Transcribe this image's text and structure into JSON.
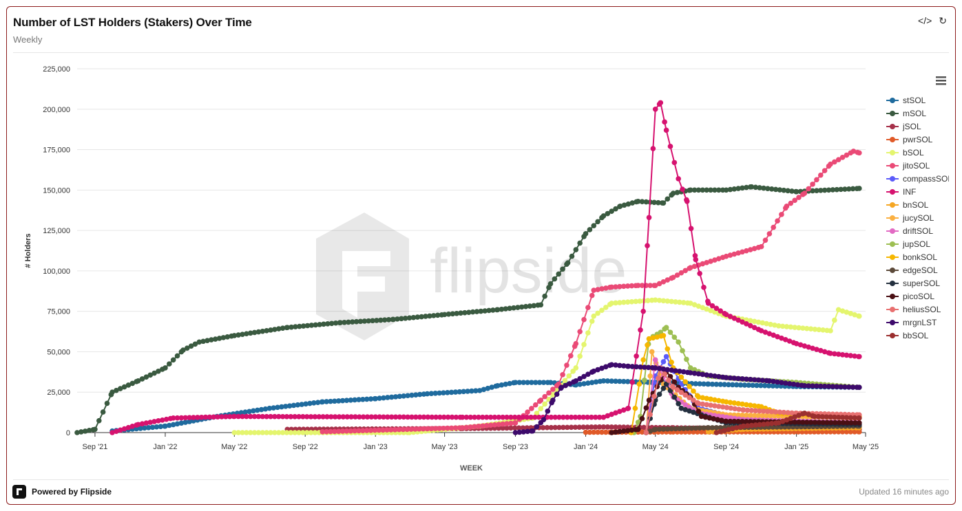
{
  "header": {
    "title": "Number of LST Holders (Stakers) Over Time",
    "subtitle": "Weekly",
    "embed_icon": "code-icon",
    "refresh_icon": "refresh-icon"
  },
  "footer": {
    "powered_by": "Powered by Flipside",
    "updated": "Updated 16 minutes ago"
  },
  "watermark": "flipside",
  "menu_icon": "hamburger-menu-icon",
  "chart_data": {
    "type": "line",
    "title": "",
    "xlabel": "WEEK",
    "ylabel": "# Holders",
    "ylim": [
      0,
      225000
    ],
    "xlim": [
      "2021-08-01",
      "2025-05-01"
    ],
    "yticks": [
      0,
      25000,
      50000,
      75000,
      100000,
      125000,
      150000,
      175000,
      200000,
      225000
    ],
    "ytick_labels": [
      "0",
      "25,000",
      "50,000",
      "75,000",
      "100,000",
      "125,000",
      "150,000",
      "175,000",
      "200,000",
      "225,000"
    ],
    "xticks": [
      "2021-09-01",
      "2022-01-01",
      "2022-05-01",
      "2022-09-01",
      "2023-01-01",
      "2023-05-01",
      "2023-09-01",
      "2024-01-01",
      "2024-05-01",
      "2024-09-01",
      "2025-01-01",
      "2025-05-01"
    ],
    "xtick_labels": [
      "Sep '21",
      "Jan '22",
      "May '22",
      "Sep '22",
      "Jan '23",
      "May '23",
      "Sep '23",
      "Jan '24",
      "May '24",
      "Sep '24",
      "Jan '25",
      "May '25"
    ],
    "grid": true,
    "legend_position": "right",
    "series": [
      {
        "name": "stSOL",
        "color": "#1f6b9e",
        "points": [
          [
            "2021-10-01",
            1000
          ],
          [
            "2022-01-01",
            4000
          ],
          [
            "2022-04-01",
            10000
          ],
          [
            "2022-07-01",
            15000
          ],
          [
            "2022-10-01",
            19000
          ],
          [
            "2023-01-01",
            21000
          ],
          [
            "2023-04-01",
            24000
          ],
          [
            "2023-07-01",
            26000
          ],
          [
            "2023-08-01",
            29000
          ],
          [
            "2023-09-01",
            31000
          ],
          [
            "2023-11-01",
            31000
          ],
          [
            "2023-12-15",
            29500
          ],
          [
            "2024-02-01",
            32000
          ],
          [
            "2024-05-01",
            31000
          ],
          [
            "2024-08-01",
            30000
          ],
          [
            "2025-01-01",
            28500
          ],
          [
            "2025-04-20",
            28000
          ]
        ]
      },
      {
        "name": "mSOL",
        "color": "#3a5a40",
        "points": [
          [
            "2021-08-01",
            0
          ],
          [
            "2021-09-01",
            2000
          ],
          [
            "2021-10-01",
            25000
          ],
          [
            "2021-11-15",
            32000
          ],
          [
            "2022-01-01",
            40000
          ],
          [
            "2022-02-01",
            51000
          ],
          [
            "2022-03-01",
            56000
          ],
          [
            "2022-05-01",
            60000
          ],
          [
            "2022-08-01",
            65000
          ],
          [
            "2022-11-01",
            68000
          ],
          [
            "2023-02-01",
            70000
          ],
          [
            "2023-05-01",
            73000
          ],
          [
            "2023-08-01",
            76000
          ],
          [
            "2023-10-15",
            79000
          ],
          [
            "2023-11-01",
            92000
          ],
          [
            "2023-12-01",
            105000
          ],
          [
            "2024-01-01",
            123000
          ],
          [
            "2024-02-01",
            134000
          ],
          [
            "2024-03-01",
            140000
          ],
          [
            "2024-04-01",
            143000
          ],
          [
            "2024-05-15",
            142000
          ],
          [
            "2024-06-01",
            148000
          ],
          [
            "2024-07-01",
            150000
          ],
          [
            "2024-09-01",
            150000
          ],
          [
            "2024-10-15",
            152000
          ],
          [
            "2025-01-01",
            149000
          ],
          [
            "2025-04-20",
            151000
          ]
        ]
      },
      {
        "name": "jSOL",
        "color": "#a6314a",
        "points": [
          [
            "2022-08-01",
            2000
          ],
          [
            "2023-06-01",
            2500
          ],
          [
            "2024-02-01",
            3500
          ],
          [
            "2024-06-01",
            3000
          ],
          [
            "2024-12-01",
            2000
          ],
          [
            "2025-04-20",
            2000
          ]
        ]
      },
      {
        "name": "pwrSOL",
        "color": "#e05a28",
        "points": [
          [
            "2024-01-01",
            200
          ],
          [
            "2024-06-01",
            400
          ],
          [
            "2025-04-20",
            500
          ]
        ]
      },
      {
        "name": "bSOL",
        "color": "#e4f56e",
        "points": [
          [
            "2022-05-01",
            0
          ],
          [
            "2023-03-01",
            0
          ],
          [
            "2023-07-01",
            4000
          ],
          [
            "2023-10-01",
            9000
          ],
          [
            "2023-12-15",
            40000
          ],
          [
            "2024-01-15",
            72000
          ],
          [
            "2024-02-15",
            80000
          ],
          [
            "2024-05-01",
            82000
          ],
          [
            "2024-07-01",
            80000
          ],
          [
            "2024-09-01",
            72000
          ],
          [
            "2024-12-01",
            66000
          ],
          [
            "2025-03-01",
            63000
          ],
          [
            "2025-03-15",
            76000
          ],
          [
            "2025-04-20",
            72000
          ]
        ]
      },
      {
        "name": "jitoSOL",
        "color": "#ea4a76",
        "points": [
          [
            "2022-10-01",
            500
          ],
          [
            "2023-06-01",
            3000
          ],
          [
            "2023-09-01",
            6000
          ],
          [
            "2023-10-15",
            20000
          ],
          [
            "2023-11-15",
            30000
          ],
          [
            "2023-12-15",
            55000
          ],
          [
            "2024-01-15",
            88000
          ],
          [
            "2024-02-15",
            90000
          ],
          [
            "2024-04-01",
            91000
          ],
          [
            "2024-05-01",
            91000
          ],
          [
            "2024-06-01",
            96000
          ],
          [
            "2024-07-01",
            102000
          ],
          [
            "2024-09-01",
            109000
          ],
          [
            "2024-11-01",
            115000
          ],
          [
            "2024-12-15",
            140000
          ],
          [
            "2025-01-15",
            148000
          ],
          [
            "2025-03-01",
            166000
          ],
          [
            "2025-04-10",
            174000
          ],
          [
            "2025-04-20",
            173000
          ]
        ]
      },
      {
        "name": "compassSOL",
        "color": "#5b5bfa",
        "points": [
          [
            "2024-04-15",
            0
          ],
          [
            "2024-05-01",
            35000
          ],
          [
            "2024-05-20",
            47000
          ],
          [
            "2024-06-15",
            30000
          ],
          [
            "2024-07-15",
            15000
          ],
          [
            "2024-10-01",
            8000
          ],
          [
            "2025-04-20",
            5000
          ]
        ]
      },
      {
        "name": "INF",
        "color": "#d6126f",
        "points": [
          [
            "2021-10-01",
            0
          ],
          [
            "2021-11-15",
            5000
          ],
          [
            "2022-01-15",
            9000
          ],
          [
            "2022-05-01",
            10000
          ],
          [
            "2023-06-01",
            9500
          ],
          [
            "2024-02-01",
            9500
          ],
          [
            "2024-03-15",
            15000
          ],
          [
            "2024-04-10",
            75000
          ],
          [
            "2024-04-20",
            133000
          ],
          [
            "2024-05-01",
            200000
          ],
          [
            "2024-05-10",
            204000
          ],
          [
            "2024-05-20",
            187000
          ],
          [
            "2024-06-10",
            157000
          ],
          [
            "2024-06-25",
            143000
          ],
          [
            "2024-07-10",
            107000
          ],
          [
            "2024-08-01",
            80000
          ],
          [
            "2024-09-01",
            73000
          ],
          [
            "2024-11-01",
            63000
          ],
          [
            "2025-01-01",
            55000
          ],
          [
            "2025-03-01",
            49000
          ],
          [
            "2025-04-20",
            47000
          ]
        ]
      },
      {
        "name": "bnSOL",
        "color": "#f5a623",
        "points": [
          [
            "2024-08-01",
            500
          ],
          [
            "2024-10-01",
            2000
          ],
          [
            "2025-04-20",
            3000
          ]
        ]
      },
      {
        "name": "jucySOL",
        "color": "#fbb041",
        "points": [
          [
            "2024-04-15",
            0
          ],
          [
            "2024-04-25",
            50000
          ],
          [
            "2024-05-15",
            30000
          ],
          [
            "2024-07-01",
            15000
          ],
          [
            "2024-09-01",
            11000
          ],
          [
            "2025-04-20",
            9000
          ]
        ]
      },
      {
        "name": "driftSOL",
        "color": "#e26ac3",
        "points": [
          [
            "2024-04-15",
            0
          ],
          [
            "2024-05-01",
            45000
          ],
          [
            "2024-06-01",
            22000
          ],
          [
            "2024-07-15",
            12000
          ],
          [
            "2024-10-01",
            8000
          ],
          [
            "2025-04-20",
            6000
          ]
        ]
      },
      {
        "name": "jupSOL",
        "color": "#9dbf52",
        "points": [
          [
            "2024-03-25",
            0
          ],
          [
            "2024-04-05",
            10000
          ],
          [
            "2024-04-20",
            58000
          ],
          [
            "2024-05-10",
            62000
          ],
          [
            "2024-05-20",
            65000
          ],
          [
            "2024-06-10",
            56000
          ],
          [
            "2024-07-01",
            40000
          ],
          [
            "2024-08-01",
            35000
          ],
          [
            "2024-10-01",
            33000
          ],
          [
            "2025-01-01",
            31000
          ],
          [
            "2025-04-20",
            28000
          ]
        ]
      },
      {
        "name": "bonkSOL",
        "color": "#f6b700",
        "points": [
          [
            "2024-03-20",
            0
          ],
          [
            "2024-04-10",
            45000
          ],
          [
            "2024-04-20",
            58000
          ],
          [
            "2024-05-15",
            60000
          ],
          [
            "2024-06-01",
            40000
          ],
          [
            "2024-07-15",
            22000
          ],
          [
            "2024-09-01",
            19000
          ],
          [
            "2024-11-01",
            16000
          ],
          [
            "2024-12-01",
            12000
          ],
          [
            "2025-04-20",
            10000
          ]
        ]
      },
      {
        "name": "edgeSOL",
        "color": "#5c4a3a",
        "points": [
          [
            "2024-04-15",
            0
          ],
          [
            "2024-05-01",
            2000
          ],
          [
            "2024-08-01",
            3000
          ],
          [
            "2025-04-20",
            4000
          ]
        ]
      },
      {
        "name": "superSOL",
        "color": "#24303f",
        "points": [
          [
            "2024-04-15",
            0
          ],
          [
            "2024-05-01",
            20000
          ],
          [
            "2024-05-20",
            30000
          ],
          [
            "2024-06-15",
            15000
          ],
          [
            "2024-09-01",
            6000
          ],
          [
            "2025-04-20",
            5000
          ]
        ]
      },
      {
        "name": "picoSOL",
        "color": "#4a0f14",
        "points": [
          [
            "2024-02-15",
            0
          ],
          [
            "2024-04-01",
            2000
          ],
          [
            "2024-04-20",
            20000
          ],
          [
            "2024-05-20",
            38000
          ],
          [
            "2024-06-10",
            28000
          ],
          [
            "2024-07-01",
            22000
          ],
          [
            "2024-07-20",
            10000
          ],
          [
            "2024-09-01",
            7000
          ],
          [
            "2025-04-20",
            6000
          ]
        ]
      },
      {
        "name": "heliusSOL",
        "color": "#e87070",
        "points": [
          [
            "2024-04-15",
            0
          ],
          [
            "2024-05-10",
            40000
          ],
          [
            "2024-06-01",
            28000
          ],
          [
            "2024-07-15",
            18000
          ],
          [
            "2024-10-01",
            14000
          ],
          [
            "2025-01-01",
            12000
          ],
          [
            "2025-04-20",
            11000
          ]
        ]
      },
      {
        "name": "mrgnLST",
        "color": "#3d0a6b",
        "points": [
          [
            "2023-09-01",
            0
          ],
          [
            "2023-10-01",
            1000
          ],
          [
            "2023-10-20",
            8000
          ],
          [
            "2023-11-05",
            20000
          ],
          [
            "2023-11-20",
            28000
          ],
          [
            "2023-12-15",
            32000
          ],
          [
            "2024-01-15",
            38000
          ],
          [
            "2024-02-15",
            42000
          ],
          [
            "2024-03-15",
            41000
          ],
          [
            "2024-05-01",
            40000
          ],
          [
            "2024-07-01",
            37000
          ],
          [
            "2024-09-01",
            34000
          ],
          [
            "2024-11-15",
            32000
          ],
          [
            "2025-01-15",
            29000
          ],
          [
            "2025-04-20",
            28000
          ]
        ]
      },
      {
        "name": "bbSOL",
        "color": "#9b2f2f",
        "points": [
          [
            "2024-08-15",
            0
          ],
          [
            "2024-10-01",
            4000
          ],
          [
            "2024-12-01",
            6000
          ],
          [
            "2025-01-15",
            12000
          ],
          [
            "2025-02-01",
            10000
          ],
          [
            "2025-04-20",
            9000
          ]
        ]
      }
    ]
  }
}
